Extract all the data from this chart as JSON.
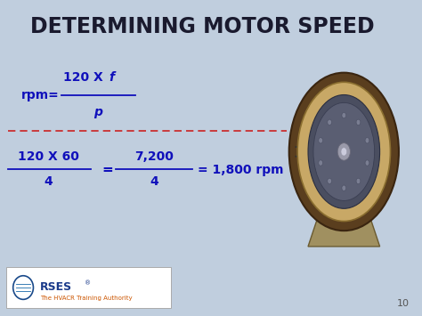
{
  "title": "DETERMINING MOTOR SPEED",
  "title_fontsize": 17,
  "title_color": "#1a1a2e",
  "bg_color": "#c0cede",
  "blue_color": "#1010bb",
  "red_dashed_color": "#cc2222",
  "formula_rpm_label": "rpm=",
  "formula_numerator": "120 X ",
  "formula_f": "f",
  "formula_denominator": "p",
  "example_num1": "120 X 60",
  "example_den1": "4",
  "example_num2": "7,200",
  "example_den2": "4",
  "example_result": "= 1,800 rpm",
  "page_number": "10",
  "footer_text": "The HVACR Training Authority"
}
